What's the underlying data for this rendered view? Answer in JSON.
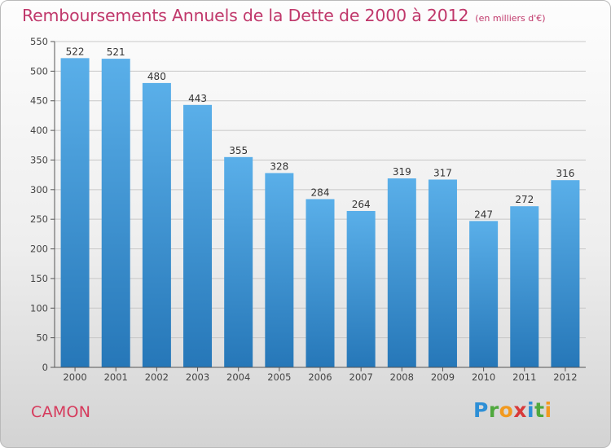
{
  "chart_data": {
    "type": "bar",
    "title": "Remboursements Annuels de la Dette de 2000 à 2012",
    "subtitle": "(en milliers d'€)",
    "categories": [
      "2000",
      "2001",
      "2002",
      "2003",
      "2004",
      "2005",
      "2006",
      "2007",
      "2008",
      "2009",
      "2010",
      "2011",
      "2012"
    ],
    "values": [
      522,
      521,
      480,
      443,
      355,
      328,
      284,
      264,
      319,
      317,
      247,
      272,
      316
    ],
    "ylim": [
      0,
      550
    ],
    "yticks": [
      0,
      50,
      100,
      150,
      200,
      250,
      300,
      350,
      400,
      450,
      500,
      550
    ],
    "grid": "horizontal",
    "legend": "none",
    "colors": {
      "bar_top": "#5aafe9",
      "bar_bottom": "#2677b8",
      "grid": "#c7c7c7",
      "title": "#c0386b"
    }
  },
  "footer": {
    "commune": "CAMON",
    "logo": "Proxiti"
  }
}
